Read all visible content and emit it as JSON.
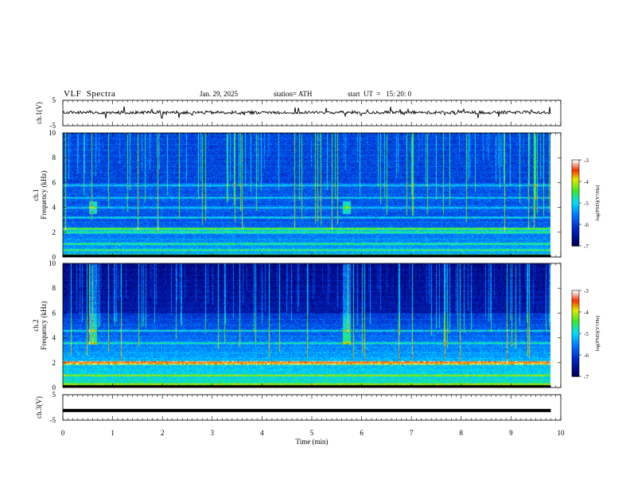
{
  "header": {
    "title": "VLF  Spectra",
    "date": "Jan. 29, 2025",
    "station": "station= ATH",
    "start": "start  UT  =   15: 20: 0"
  },
  "chart_data": [
    {
      "type": "line",
      "name": "ch1-waveform",
      "ylabel": "ch.1(V)",
      "ylim": [
        -5,
        5
      ],
      "yticks": [
        "5",
        "-5"
      ],
      "xlim": [
        0,
        10
      ]
    },
    {
      "type": "heatmap",
      "name": "ch1-spectrogram",
      "ylabel": "ch.1\nFrequency  (kHz)",
      "ylabel_lines": [
        "ch.1",
        "Frequency  (kHz)"
      ],
      "ylim": [
        0,
        10
      ],
      "yticks": [
        "0",
        "2",
        "4",
        "6",
        "8",
        "10"
      ],
      "xlim": [
        0,
        10
      ],
      "colorbar": {
        "label": "log(PSD)(V²/Hz)",
        "range": [
          -7,
          -3
        ],
        "ticks": [
          "-3",
          "-4",
          "-5",
          "-6",
          "-7"
        ]
      },
      "colors": {
        "bg": "#0a2c9c",
        "mid": "#00c8ff",
        "hi": "#39e81d",
        "peak": "#e80000"
      },
      "bands_khz": [
        0.2,
        0.6,
        1.1,
        2.0,
        2.3,
        3.2,
        4.0,
        4.8,
        5.8
      ]
    },
    {
      "type": "heatmap",
      "name": "ch2-spectrogram",
      "ylabel": "ch.2\nFrequency  (kHz)",
      "ylabel_lines": [
        "ch.2",
        "Frequency  (kHz)"
      ],
      "ylim": [
        0,
        10
      ],
      "yticks": [
        "0",
        "2",
        "4",
        "6",
        "8",
        "10"
      ],
      "xlim": [
        0,
        10
      ],
      "colorbar": {
        "label": "log(PSD)(V²/Hz)",
        "range": [
          -7,
          -3
        ],
        "ticks": [
          "-3",
          "-4",
          "-5",
          "-6",
          "-7"
        ]
      },
      "colors": {
        "bg": "#000050",
        "mid": "#00c8ff",
        "hi": "#39e81d",
        "peak": "#e80000"
      },
      "bands_khz": [
        0.3,
        1.0,
        1.9,
        2.1,
        3.6,
        4.6
      ]
    },
    {
      "type": "line",
      "name": "ch3-waveform",
      "ylabel": "ch.3(V)",
      "ylim": [
        -5,
        5
      ],
      "yticks": [
        "5",
        "-5"
      ],
      "xlim": [
        0,
        10
      ],
      "value_approx": -1.2
    }
  ],
  "xaxis": {
    "label": "Time  (min)",
    "ticks": [
      "0",
      "1",
      "2",
      "3",
      "4",
      "5",
      "6",
      "7",
      "8",
      "9",
      "10"
    ],
    "range": [
      0,
      10
    ],
    "data_end": 9.8
  }
}
